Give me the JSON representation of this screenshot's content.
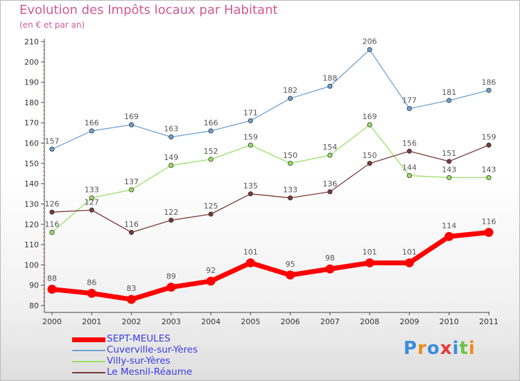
{
  "chart_data": {
    "type": "line",
    "title": "Evolution des Impôts locaux par Habitant",
    "subtitle": "(en € et par an)",
    "categories": [
      "2000",
      "2001",
      "2002",
      "2003",
      "2004",
      "2005",
      "2006",
      "2007",
      "2008",
      "2009",
      "2010",
      "2011"
    ],
    "ylim": [
      80,
      210
    ],
    "yticks": [
      "80",
      "90",
      "100",
      "110",
      "120",
      "130",
      "140",
      "150",
      "160",
      "170",
      "180",
      "190",
      "200",
      "210"
    ],
    "grid": false,
    "legend_position": "bottom-left",
    "series": [
      {
        "name": "SEPT-MEULES",
        "color": "#ff0000",
        "values": [
          88,
          86,
          83,
          89,
          92,
          101,
          95,
          98,
          101,
          101,
          114,
          116
        ]
      },
      {
        "name": "Cuverville-sur-Yères",
        "color": "#6ea0d2",
        "values": [
          157,
          166,
          169,
          163,
          166,
          171,
          182,
          188,
          206,
          177,
          181,
          186
        ]
      },
      {
        "name": "Villy-sur-Yères",
        "color": "#99e066",
        "values": [
          116,
          133,
          137,
          149,
          152,
          159,
          150,
          154,
          169,
          144,
          143,
          143
        ]
      },
      {
        "name": "Le Mesnil-Réaume",
        "color": "#7a3a3a",
        "values": [
          126,
          127,
          116,
          122,
          125,
          135,
          133,
          136,
          150,
          156,
          151,
          159
        ]
      }
    ]
  },
  "logo": {
    "letters": [
      "P",
      "r",
      "o",
      "x",
      "i",
      "t",
      "i"
    ]
  }
}
